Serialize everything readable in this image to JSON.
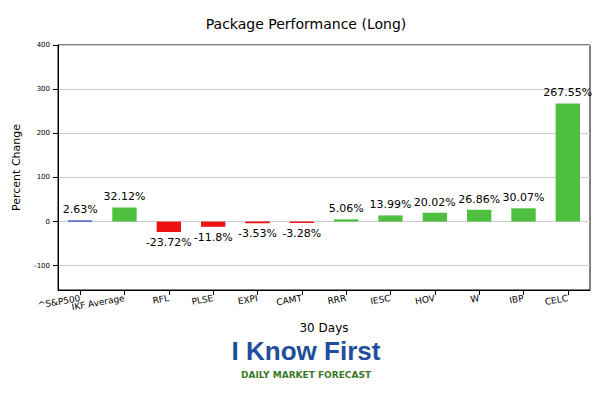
{
  "chart_data": {
    "type": "bar",
    "title": "Package Performance (Long)",
    "xlabel": "30 Days",
    "ylabel": "Percent Change",
    "categories": [
      "^S&P500",
      "IKF Average",
      "RFL",
      "PLSE",
      "EXPI",
      "CAMT",
      "RRR",
      "IESC",
      "HOV",
      "W",
      "IBP",
      "CELC"
    ],
    "values": [
      2.63,
      32.12,
      -23.72,
      -11.8,
      -3.53,
      -3.28,
      5.06,
      13.99,
      20.02,
      26.86,
      30.07,
      267.55
    ],
    "value_labels": [
      "2.63%",
      "32.12%",
      "-23.72%",
      "-11.8%",
      "-3.53%",
      "-3.28%",
      "5.06%",
      "13.99%",
      "20.02%",
      "26.86%",
      "30.07%",
      "267.55%"
    ],
    "colors": [
      "#1f3fbf",
      "#4fbf3f",
      "#ee1111",
      "#ee1111",
      "#ee1111",
      "#ee1111",
      "#4fbf3f",
      "#4fbf3f",
      "#4fbf3f",
      "#4fbf3f",
      "#4fbf3f",
      "#4fbf3f"
    ],
    "ylim": [
      -155,
      400
    ],
    "yticks": [
      -100,
      0,
      100,
      200,
      300,
      400
    ],
    "grid": true,
    "data_labels": true,
    "annotations": [
      "I Know First",
      "DAILY MARKET FORECAST"
    ]
  }
}
